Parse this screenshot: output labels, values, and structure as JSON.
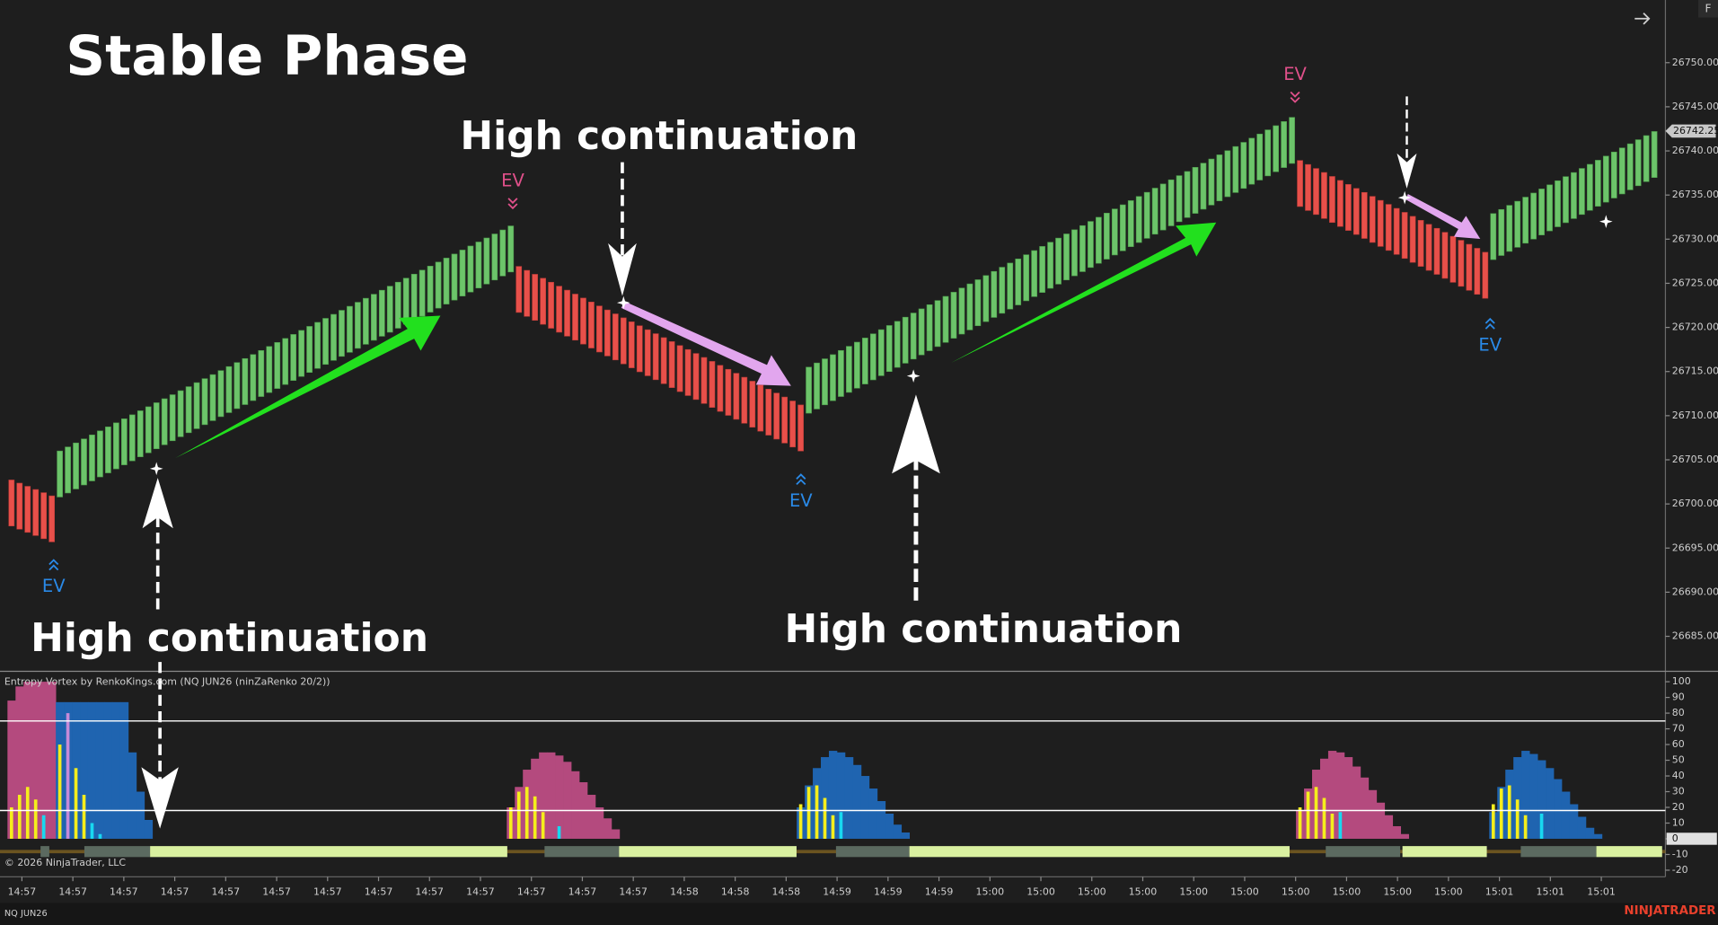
{
  "header": {
    "title": "Stable Phase",
    "indicator_label": "Entropy Vortex by RenkoKings.com (NQ JUN26 (ninZaRenko 20/2))",
    "copyright": "© 2026 NinjaTrader, LLC",
    "instrument": "NQ JUN26",
    "brand": "NINJATRADER",
    "panel_button": "F"
  },
  "chart_data": {
    "type": "renko",
    "up_color": "#6cc46a",
    "down_color": "#e8504a",
    "legs": [
      {
        "direction": "down",
        "start": 26697.5,
        "end": 26695.7,
        "count": 6
      },
      {
        "direction": "up",
        "start": 26706,
        "end": 26731.5,
        "count": 57
      },
      {
        "direction": "down",
        "start": 26721.7,
        "end": 26706,
        "count": 36
      },
      {
        "direction": "up",
        "start": 26715.5,
        "end": 26743.8,
        "count": 61
      },
      {
        "direction": "down",
        "start": 26733.7,
        "end": 26723.3,
        "count": 24
      },
      {
        "direction": "up",
        "start": 26732.9,
        "end": 26742.2,
        "count": 21
      }
    ],
    "ylim": [
      26681.1,
      26757.1
    ],
    "yticks": [
      {
        "value": 26685,
        "label": "26685.00"
      },
      {
        "value": 26690,
        "label": "26690.00"
      },
      {
        "value": 26695,
        "label": "26695.00"
      },
      {
        "value": 26700,
        "label": "26700.00"
      },
      {
        "value": 26705,
        "label": "26705.00"
      },
      {
        "value": 26710,
        "label": "26710.00"
      },
      {
        "value": 26715,
        "label": "26715.00"
      },
      {
        "value": 26720,
        "label": "26720.00"
      },
      {
        "value": 26725,
        "label": "26725.00"
      },
      {
        "value": 26730,
        "label": "26730.00"
      },
      {
        "value": 26735,
        "label": "26735.00"
      },
      {
        "value": 26740,
        "label": "26740.00"
      },
      {
        "value": 26745,
        "label": "26745.00"
      },
      {
        "value": 26750,
        "label": "26750.00"
      }
    ],
    "last_price": 26742.25,
    "categories": [
      "14:57",
      "14:57",
      "14:57",
      "14:57",
      "14:57",
      "14:57",
      "14:57",
      "14:57",
      "14:57",
      "14:57",
      "14:57",
      "14:57",
      "14:57",
      "14:58",
      "14:58",
      "14:58",
      "14:59",
      "14:59",
      "14:59",
      "15:00",
      "15:00",
      "15:00",
      "15:00",
      "15:00",
      "15:00",
      "15:00",
      "15:00",
      "15:00",
      "15:00",
      "15:01",
      "15:01",
      "15:01"
    ],
    "signals": [
      {
        "index": 18,
        "value": 26704
      },
      {
        "index": 76,
        "value": 26722.8
      },
      {
        "index": 112,
        "value": 26714.5
      },
      {
        "index": 173,
        "value": 26734.7
      },
      {
        "index": 198,
        "value": 26732
      }
    ],
    "annotations": [
      "High continuation",
      "High continuation",
      "High continuation"
    ],
    "ev_labels": [
      {
        "text": "EV",
        "color": "#e0508a"
      },
      {
        "text": "EV",
        "color": "#e0508a"
      },
      {
        "text": "EV",
        "color": "#2a8ae8"
      },
      {
        "text": "EV",
        "color": "#2a8ae8"
      },
      {
        "text": "EV",
        "color": "#2a8ae8"
      }
    ]
  },
  "indicator": {
    "type": "histogram",
    "ylim": [
      -24.2,
      105.6
    ],
    "yticks": [
      100,
      90,
      80,
      70,
      60,
      50,
      40,
      30,
      20,
      10,
      0,
      -10,
      -20
    ],
    "levels": [
      75,
      18
    ],
    "areas": [
      {
        "color": "#b44a7e",
        "start": 0,
        "values": [
          88,
          97,
          100,
          100,
          100,
          100
        ]
      },
      {
        "color": "#1f64b0",
        "start": 6,
        "values": [
          87,
          87,
          87,
          87,
          87,
          87,
          87,
          87,
          87,
          55,
          30,
          12
        ]
      },
      {
        "color": "#b44a7e",
        "start": 62,
        "values": [
          20,
          33,
          44,
          51,
          55,
          55,
          53,
          49,
          43,
          36,
          28,
          20,
          13,
          6
        ]
      },
      {
        "color": "#1f64b0",
        "start": 98,
        "values": [
          20,
          34,
          45,
          52,
          56,
          55,
          52,
          47,
          40,
          32,
          24,
          16,
          9,
          4
        ]
      },
      {
        "color": "#b44a7e",
        "start": 160,
        "values": [
          18,
          32,
          44,
          51,
          56,
          55,
          52,
          46,
          39,
          31,
          23,
          15,
          8,
          3
        ]
      },
      {
        "color": "#1f64b0",
        "start": 184,
        "values": [
          17,
          33,
          44,
          52,
          56,
          54,
          50,
          45,
          38,
          30,
          22,
          14,
          7,
          3
        ]
      }
    ],
    "bars": [
      {
        "color": "#f5ee1c",
        "start": 0,
        "values": [
          20,
          28,
          33,
          25,
          14
        ]
      },
      {
        "color": "#f5ee1c",
        "start": 6,
        "values": [
          60
        ]
      },
      {
        "color": "#c58ad8",
        "start": 7,
        "values": [
          80
        ]
      },
      {
        "color": "#f5ee1c",
        "start": 8,
        "values": [
          45,
          28
        ]
      },
      {
        "color": "#18d8f0",
        "start": 4,
        "values": [
          15
        ]
      },
      {
        "color": "#18d8f0",
        "start": 10,
        "values": [
          10,
          3
        ]
      },
      {
        "color": "#f5ee1c",
        "start": 62,
        "values": [
          20,
          30,
          33,
          27,
          17
        ]
      },
      {
        "color": "#18d8f0",
        "start": 68,
        "values": [
          8
        ]
      },
      {
        "color": "#f5ee1c",
        "start": 98,
        "values": [
          22,
          33,
          34,
          26,
          15
        ]
      },
      {
        "color": "#18d8f0",
        "start": 103,
        "values": [
          17
        ]
      },
      {
        "color": "#f5ee1c",
        "start": 160,
        "values": [
          20,
          30,
          33,
          26,
          16
        ]
      },
      {
        "color": "#18d8f0",
        "start": 165,
        "values": [
          17
        ]
      },
      {
        "color": "#f5ee1c",
        "start": 184,
        "values": [
          22,
          32,
          34,
          25,
          15
        ]
      },
      {
        "color": "#18d8f0",
        "start": 190,
        "values": [
          16
        ]
      }
    ]
  }
}
